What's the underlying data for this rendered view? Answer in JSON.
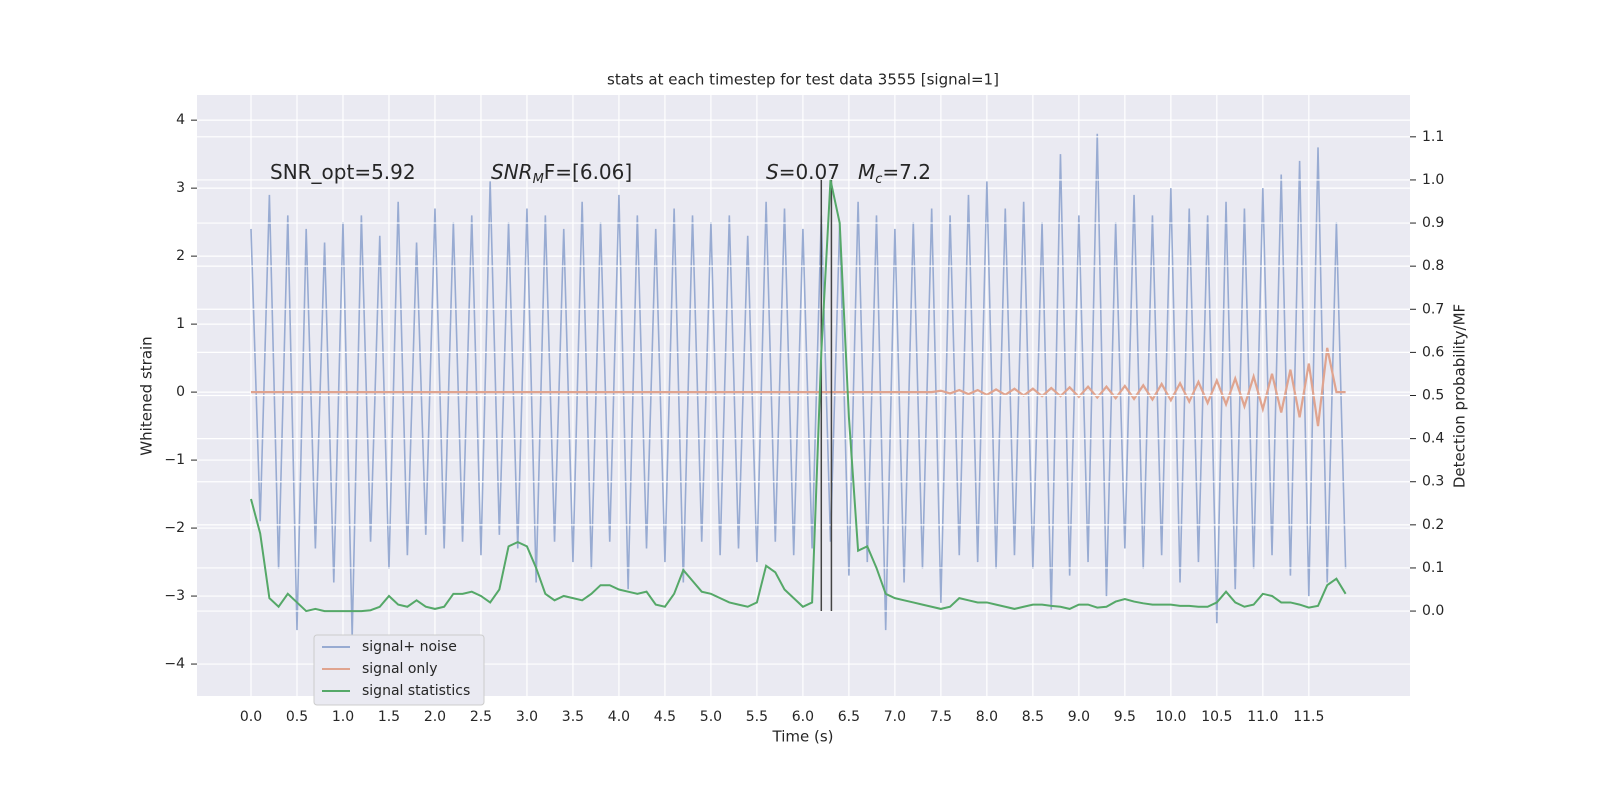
{
  "chart_data": {
    "type": "line",
    "title": "stats at each timestep for test data 3555 [signal=1]",
    "xlabel": "Time (s)",
    "ylabel": "Whitened strain",
    "y2label": "Detection probability/MF",
    "annotations": [
      {
        "text": "SNR_opt=5.92"
      },
      {
        "text": "SNR",
        "sub": "M",
        "tail": "F=[6.06]"
      },
      {
        "text": "S",
        "tail": "=0.07"
      },
      {
        "text": "M",
        "sub": "c",
        "tail": "=7.2"
      }
    ],
    "x": [
      0,
      0.1,
      0.2,
      0.3,
      0.4,
      0.5,
      0.6,
      0.7,
      0.8,
      0.9,
      1,
      1.1,
      1.2,
      1.3,
      1.4,
      1.5,
      1.6,
      1.7,
      1.8,
      1.9,
      2,
      2.1,
      2.2,
      2.3,
      2.4,
      2.5,
      2.6,
      2.7,
      2.8,
      2.9,
      3,
      3.1,
      3.2,
      3.3,
      3.4,
      3.5,
      3.6,
      3.7,
      3.8,
      3.9,
      4,
      4.1,
      4.2,
      4.3,
      4.4,
      4.5,
      4.6,
      4.7,
      4.8,
      4.9,
      5,
      5.1,
      5.2,
      5.3,
      5.4,
      5.5,
      5.6,
      5.7,
      5.8,
      5.9,
      6,
      6.1,
      6.2,
      6.3,
      6.4,
      6.5,
      6.6,
      6.7,
      6.8,
      6.9,
      7,
      7.1,
      7.2,
      7.3,
      7.4,
      7.5,
      7.6,
      7.7,
      7.8,
      7.9,
      8,
      8.1,
      8.2,
      8.3,
      8.4,
      8.5,
      8.6,
      8.7,
      8.8,
      8.9,
      9,
      9.1,
      9.2,
      9.3,
      9.4,
      9.5,
      9.6,
      9.7,
      9.8,
      9.9,
      10,
      10.1,
      10.2,
      10.3,
      10.4,
      10.5,
      10.6,
      10.7,
      10.8,
      10.9,
      11,
      11.1,
      11.2,
      11.3,
      11.4,
      11.5,
      11.6,
      11.7,
      11.8,
      11.9
    ],
    "series": [
      {
        "name": "signal+ noise",
        "color": "#98abd2",
        "values": [
          2.4,
          -1.9,
          2.9,
          -2.6,
          2.6,
          -3.5,
          2.4,
          -2.3,
          2.2,
          -2.8,
          2.5,
          -3.6,
          2.6,
          -2.2,
          2.3,
          -2.6,
          2.8,
          -2.4,
          2.2,
          -2.1,
          2.7,
          -2.3,
          2.5,
          -2.2,
          2.6,
          -2.4,
          3.1,
          -2.1,
          2.5,
          -2.3,
          2.7,
          -2.8,
          2.6,
          -2.2,
          2.4,
          -2.5,
          2.8,
          -2.6,
          2.5,
          -2.2,
          2.9,
          -2.9,
          2.6,
          -2.3,
          2.4,
          -2.5,
          2.7,
          -2.8,
          2.6,
          -2.2,
          2.5,
          -2.4,
          2.6,
          -2.3,
          2.3,
          -2.5,
          2.8,
          -2.2,
          2.7,
          -2.4,
          2.4,
          -2.3,
          2.6,
          -2.2,
          2.5,
          -2.7,
          2.8,
          -2.5,
          2.6,
          -3.5,
          2.4,
          -2.8,
          2.5,
          -2.6,
          2.7,
          -3.1,
          2.6,
          -2.4,
          2.9,
          -2.5,
          3.1,
          -2.6,
          2.7,
          -2.4,
          2.8,
          -2.6,
          2.5,
          -3.2,
          3.5,
          -2.7,
          2.6,
          -2.5,
          3.8,
          -3.0,
          2.5,
          -2.3,
          2.9,
          -2.6,
          2.6,
          -2.4,
          3.0,
          -2.8,
          2.7,
          -2.5,
          2.6,
          -3.4,
          2.8,
          -2.9,
          2.7,
          -2.6,
          3.0,
          -2.4,
          3.2,
          -2.7,
          3.4,
          -3.0,
          3.6,
          -2.8,
          2.5,
          -2.6
        ]
      },
      {
        "name": "signal only",
        "color": "#e0a48f",
        "values": [
          0,
          0,
          0,
          0,
          0,
          0,
          0,
          0,
          0,
          0,
          0,
          0,
          0,
          0,
          0,
          0,
          0,
          0,
          0,
          0,
          0,
          0,
          0,
          0,
          0,
          0,
          0,
          0,
          0,
          0,
          0,
          0,
          0,
          0,
          0,
          0,
          0,
          0,
          0,
          0,
          0,
          0,
          0,
          0,
          0,
          0,
          0,
          0,
          0,
          0,
          0,
          0,
          0,
          0,
          0,
          0,
          0,
          0,
          0,
          0,
          0,
          0,
          0,
          0,
          0,
          0,
          0,
          0,
          0,
          0,
          0,
          0,
          0,
          0,
          0,
          0.02,
          -0.02,
          0.03,
          -0.03,
          0.03,
          -0.04,
          0.04,
          -0.04,
          0.05,
          -0.05,
          0.05,
          -0.06,
          0.06,
          -0.06,
          0.07,
          -0.07,
          0.08,
          -0.08,
          0.08,
          -0.09,
          0.09,
          -0.1,
          0.1,
          -0.11,
          0.12,
          -0.12,
          0.13,
          -0.14,
          0.15,
          -0.16,
          0.17,
          -0.18,
          0.2,
          -0.21,
          0.23,
          -0.25,
          0.27,
          -0.3,
          0.33,
          -0.37,
          0.42,
          -0.5,
          0.65,
          0,
          0
        ]
      },
      {
        "name": "signal statistics",
        "color": "#55a868",
        "axis": "y2",
        "values": [
          0.26,
          0.18,
          0.03,
          0.01,
          0.04,
          0.02,
          0,
          0.005,
          0,
          0,
          0,
          0,
          0,
          0.002,
          0.01,
          0.035,
          0.015,
          0.01,
          0.025,
          0.01,
          0.005,
          0.01,
          0.04,
          0.04,
          0.045,
          0.035,
          0.02,
          0.05,
          0.15,
          0.16,
          0.15,
          0.1,
          0.04,
          0.025,
          0.035,
          0.03,
          0.025,
          0.04,
          0.06,
          0.06,
          0.05,
          0.045,
          0.04,
          0.045,
          0.015,
          0.01,
          0.04,
          0.095,
          0.07,
          0.045,
          0.04,
          0.03,
          0.02,
          0.015,
          0.01,
          0.02,
          0.105,
          0.09,
          0.05,
          0.03,
          0.01,
          0.02,
          0.6,
          1.0,
          0.9,
          0.45,
          0.14,
          0.15,
          0.1,
          0.04,
          0.03,
          0.025,
          0.02,
          0.015,
          0.01,
          0.005,
          0.01,
          0.03,
          0.025,
          0.02,
          0.02,
          0.015,
          0.01,
          0.005,
          0.01,
          0.015,
          0.015,
          0.012,
          0.01,
          0.005,
          0.015,
          0.015,
          0.008,
          0.01,
          0.022,
          0.028,
          0.022,
          0.018,
          0.015,
          0.015,
          0.015,
          0.012,
          0.012,
          0.01,
          0.01,
          0.02,
          0.045,
          0.02,
          0.01,
          0.015,
          0.04,
          0.035,
          0.02,
          0.02,
          0.015,
          0.008,
          0.012,
          0.06,
          0.075,
          0.04
        ]
      }
    ],
    "vlines": [
      6.2,
      6.31
    ],
    "vline_color": "#444444",
    "xlim": [
      -0.587,
      12.6
    ],
    "ylim": [
      -4.47,
      4.37
    ],
    "y2lim": [
      -0.197,
      1.197
    ],
    "xticks": [
      {
        "value": 0,
        "label": "0.0"
      },
      0.5,
      {
        "value": 1,
        "label": "1.0"
      },
      1.5,
      {
        "value": 2,
        "label": "2.0"
      },
      2.5,
      {
        "value": 3,
        "label": "3.0"
      },
      3.5,
      {
        "value": 4,
        "label": "4.0"
      },
      4.5,
      {
        "value": 5,
        "label": "5.0"
      },
      5.5,
      {
        "value": 6,
        "label": "6.0"
      },
      6.5,
      {
        "value": 7,
        "label": "7.0"
      },
      7.5,
      {
        "value": 8,
        "label": "8.0"
      },
      8.5,
      {
        "value": 9,
        "label": "9.0"
      },
      9.5,
      {
        "value": 10,
        "label": "10.0"
      },
      10.5,
      {
        "value": 11,
        "label": "11.0"
      },
      11.5
    ],
    "yticks": [
      {
        "value": -4,
        "label": "−4"
      },
      {
        "value": -3,
        "label": "−3"
      },
      {
        "value": -2,
        "label": "−2"
      },
      {
        "value": -1,
        "label": "−1"
      },
      0,
      1,
      2,
      3,
      4
    ],
    "y2ticks": [
      {
        "value": 0,
        "label": "0.0"
      },
      0.1,
      0.2,
      0.3,
      0.4,
      0.5,
      0.6,
      0.7,
      0.8,
      0.9,
      {
        "value": 1,
        "label": "1.0"
      },
      1.1
    ],
    "grid": true,
    "legend": "lower left"
  }
}
